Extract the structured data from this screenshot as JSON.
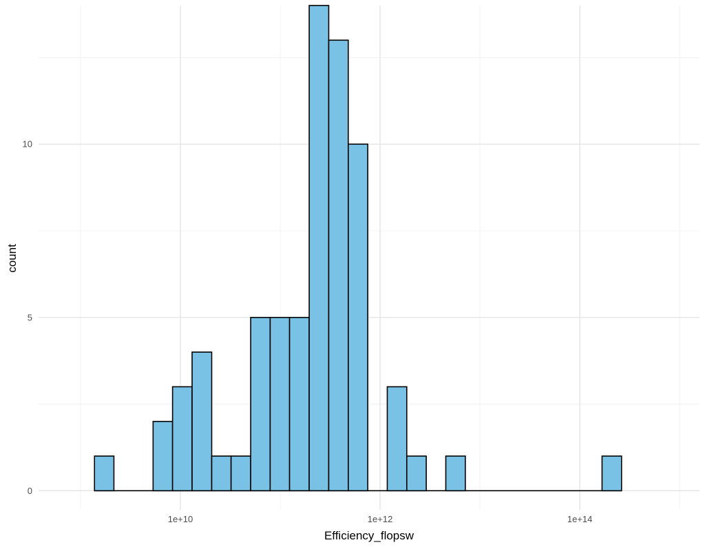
{
  "chart_data": {
    "type": "bar",
    "xlabel": "Efficiency_flopsw",
    "ylabel": "count",
    "x_scale": "log10",
    "xlim": [
      380000000.0,
      1580000000000000.0
    ],
    "ylim": [
      -0.55,
      14.0
    ],
    "x_ticks": [
      {
        "value": 10000000000.0,
        "label": "1e+10"
      },
      {
        "value": 1000000000000.0,
        "label": "1e+12"
      },
      {
        "value": 100000000000000.0,
        "label": "1e+14"
      }
    ],
    "y_ticks": [
      {
        "value": 0,
        "label": "0"
      },
      {
        "value": 5,
        "label": "5"
      },
      {
        "value": 10,
        "label": "10"
      }
    ],
    "bins": [
      {
        "x0": 1380000000.0,
        "x1": 2160000000.0,
        "count": 1
      },
      {
        "x0": 2160000000.0,
        "x1": 3390000000.0,
        "count": 0
      },
      {
        "x0": 3390000000.0,
        "x1": 5330000000.0,
        "count": 0
      },
      {
        "x0": 5330000000.0,
        "x1": 8350000000.0,
        "count": 2
      },
      {
        "x0": 8350000000.0,
        "x1": 13100000000.0,
        "count": 3
      },
      {
        "x0": 13100000000.0,
        "x1": 20600000000.0,
        "count": 4
      },
      {
        "x0": 20600000000.0,
        "x1": 32200000000.0,
        "count": 1
      },
      {
        "x0": 32200000000.0,
        "x1": 50600000000.0,
        "count": 1
      },
      {
        "x0": 50600000000.0,
        "x1": 79300000000.0,
        "count": 5
      },
      {
        "x0": 79300000000.0,
        "x1": 124000000000.0,
        "count": 5
      },
      {
        "x0": 124000000000.0,
        "x1": 195000000000.0,
        "count": 5
      },
      {
        "x0": 195000000000.0,
        "x1": 306000000000.0,
        "count": 14
      },
      {
        "x0": 306000000000.0,
        "x1": 480000000000.0,
        "count": 13
      },
      {
        "x0": 480000000000.0,
        "x1": 753000000000.0,
        "count": 10
      },
      {
        "x0": 753000000000.0,
        "x1": 1180000000000.0,
        "count": 0
      },
      {
        "x0": 1180000000000.0,
        "x1": 1850000000000.0,
        "count": 3
      },
      {
        "x0": 1850000000000.0,
        "x1": 2900000000000.0,
        "count": 1
      },
      {
        "x0": 2900000000000.0,
        "x1": 4550000000000.0,
        "count": 0
      },
      {
        "x0": 4550000000000.0,
        "x1": 7140000000000.0,
        "count": 1
      },
      {
        "x0": 7140000000000.0,
        "x1": 11200000000000.0,
        "count": 0
      },
      {
        "x0": 11200000000000.0,
        "x1": 17600000000000.0,
        "count": 0
      },
      {
        "x0": 17600000000000.0,
        "x1": 27600000000000.0,
        "count": 0
      },
      {
        "x0": 27600000000000.0,
        "x1": 43300000000000.0,
        "count": 0
      },
      {
        "x0": 43300000000000.0,
        "x1": 67900000000000.0,
        "count": 0
      },
      {
        "x0": 67900000000000.0,
        "x1": 106000000000000.0,
        "count": 0
      },
      {
        "x0": 106000000000000.0,
        "x1": 167000000000000.0,
        "count": 0
      },
      {
        "x0": 167000000000000.0,
        "x1": 262000000000000.0,
        "count": 1
      }
    ],
    "grid": true,
    "bar_fill": "#79c2e5",
    "bar_outline": "#000000"
  }
}
